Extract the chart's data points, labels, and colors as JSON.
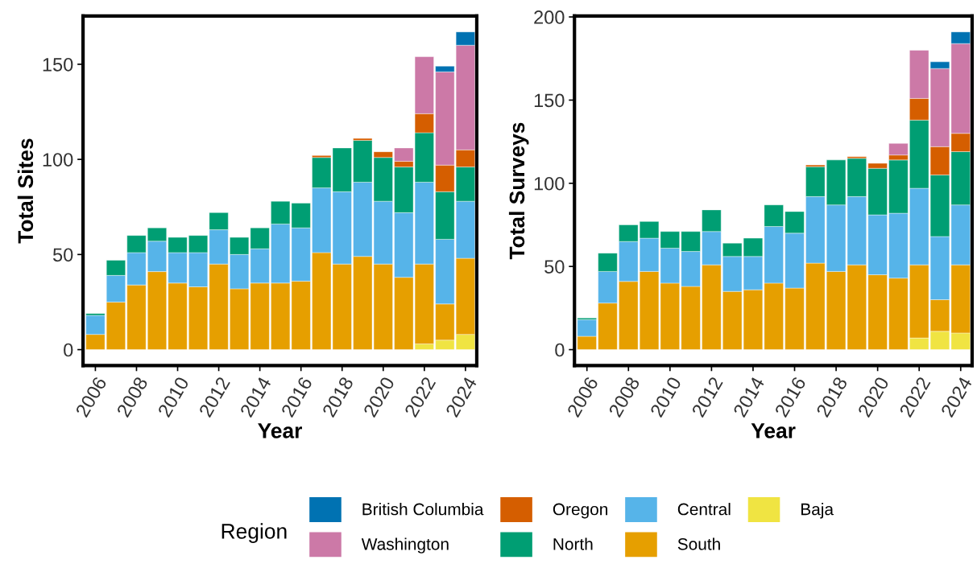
{
  "chart_data": [
    {
      "type": "bar",
      "stacked": true,
      "xlabel": "Year",
      "ylabel": "Total Sites",
      "legend": "bottom",
      "legend_title": "Region",
      "grid": false,
      "x": [
        2006,
        2007,
        2008,
        2009,
        2010,
        2011,
        2012,
        2013,
        2014,
        2015,
        2016,
        2017,
        2018,
        2019,
        2020,
        2021,
        2022,
        2023,
        2024
      ],
      "xlim": [
        2005.4,
        2024.55
      ],
      "xticks": [
        2006,
        2008,
        2010,
        2012,
        2014,
        2016,
        2018,
        2020,
        2022,
        2024
      ],
      "ylim": [
        -8.35,
        175.35
      ],
      "yticks": [
        0,
        50,
        100,
        150
      ],
      "series": [
        {
          "name": "Baja",
          "color": "#f0e442",
          "values": [
            null,
            null,
            null,
            null,
            null,
            null,
            null,
            null,
            null,
            null,
            null,
            null,
            null,
            null,
            null,
            null,
            3,
            5,
            8
          ]
        },
        {
          "name": "South",
          "color": "#e69f00",
          "values": [
            8,
            25,
            34,
            41,
            35,
            33,
            45,
            32,
            35,
            35,
            36,
            51,
            45,
            49,
            45,
            38,
            42,
            19,
            40
          ]
        },
        {
          "name": "Central",
          "color": "#56b4e9",
          "values": [
            10,
            14,
            17,
            16,
            16,
            18,
            18,
            18,
            18,
            31,
            28,
            34,
            38,
            39,
            33,
            34,
            43,
            34,
            30
          ]
        },
        {
          "name": "North",
          "color": "#009e73",
          "values": [
            1,
            8,
            9,
            7,
            8,
            9,
            9,
            9,
            11,
            12,
            13,
            16,
            23,
            22,
            23,
            24,
            26,
            25,
            18
          ]
        },
        {
          "name": "Oregon",
          "color": "#d55e00",
          "values": [
            null,
            null,
            null,
            null,
            null,
            null,
            null,
            null,
            null,
            null,
            null,
            1,
            null,
            1,
            3,
            3,
            10,
            14,
            9
          ]
        },
        {
          "name": "Washington",
          "color": "#cc79a7",
          "values": [
            null,
            null,
            null,
            null,
            null,
            null,
            null,
            null,
            null,
            null,
            null,
            null,
            null,
            null,
            null,
            7,
            30,
            49,
            55
          ]
        },
        {
          "name": "British Columbia",
          "color": "#0072b2",
          "values": [
            null,
            null,
            null,
            null,
            null,
            null,
            null,
            null,
            null,
            null,
            null,
            null,
            null,
            null,
            null,
            null,
            null,
            3,
            7
          ]
        }
      ]
    },
    {
      "type": "bar",
      "stacked": true,
      "xlabel": "Year",
      "ylabel": "Total Surveys",
      "legend": "bottom",
      "grid": false,
      "x": [
        2006,
        2007,
        2008,
        2009,
        2010,
        2011,
        2012,
        2013,
        2014,
        2015,
        2016,
        2017,
        2018,
        2019,
        2020,
        2021,
        2022,
        2023,
        2024
      ],
      "xlim": [
        2005.4,
        2024.55
      ],
      "xticks": [
        2006,
        2008,
        2010,
        2012,
        2014,
        2016,
        2018,
        2020,
        2022,
        2024
      ],
      "ylim": [
        -9.55,
        200.55
      ],
      "yticks": [
        0,
        50,
        100,
        150,
        200
      ],
      "series": [
        {
          "name": "Baja",
          "color": "#f0e442",
          "values": [
            null,
            null,
            null,
            null,
            null,
            null,
            null,
            null,
            null,
            null,
            null,
            null,
            null,
            null,
            null,
            null,
            7,
            11,
            10
          ]
        },
        {
          "name": "South",
          "color": "#e69f00",
          "values": [
            8,
            28,
            41,
            47,
            40,
            38,
            51,
            35,
            36,
            40,
            37,
            52,
            47,
            51,
            45,
            43,
            44,
            19,
            41
          ]
        },
        {
          "name": "Central",
          "color": "#56b4e9",
          "values": [
            10,
            19,
            24,
            20,
            21,
            21,
            20,
            21,
            20,
            34,
            33,
            40,
            40,
            41,
            36,
            39,
            46,
            38,
            36
          ]
        },
        {
          "name": "North",
          "color": "#009e73",
          "values": [
            1,
            11,
            10,
            10,
            10,
            12,
            13,
            8,
            11,
            13,
            13,
            18,
            27,
            23,
            28,
            32,
            41,
            37,
            32
          ]
        },
        {
          "name": "Oregon",
          "color": "#d55e00",
          "values": [
            null,
            null,
            null,
            null,
            null,
            null,
            null,
            null,
            null,
            null,
            null,
            1,
            null,
            1,
            3,
            3,
            13,
            17,
            11
          ]
        },
        {
          "name": "Washington",
          "color": "#cc79a7",
          "values": [
            null,
            null,
            null,
            null,
            null,
            null,
            null,
            null,
            null,
            null,
            null,
            null,
            null,
            null,
            null,
            7,
            29,
            47,
            54
          ]
        },
        {
          "name": "British Columbia",
          "color": "#0072b2",
          "values": [
            null,
            null,
            null,
            null,
            null,
            null,
            null,
            null,
            null,
            null,
            null,
            null,
            null,
            null,
            null,
            null,
            null,
            4,
            7
          ]
        }
      ]
    }
  ]
}
